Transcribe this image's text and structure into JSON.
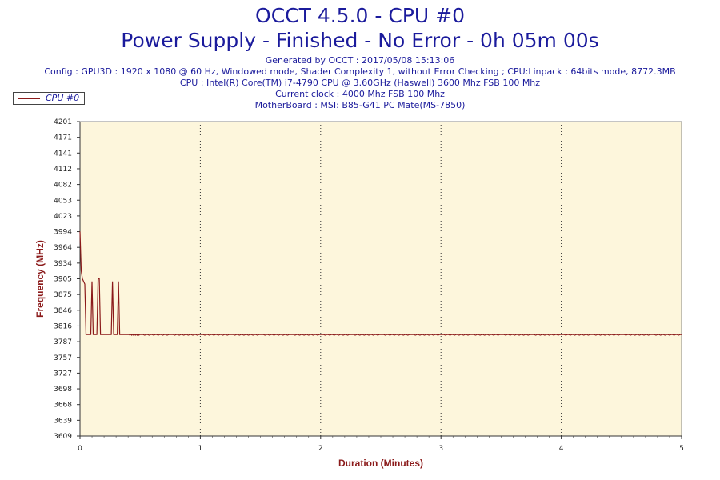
{
  "header": {
    "title_line1": "OCCT 4.5.0 - CPU #0",
    "title_line2": "Power Supply - Finished - No Error - 0h 05m 00s",
    "info_lines": [
      "Generated by OCCT : 2017/05/08 15:13:06",
      "Config : GPU3D : 1920 x 1080 @ 60 Hz, Windowed mode, Shader Complexity 1, without Error Checking ; CPU:Linpack : 64bits mode, 8772.3MB",
      "CPU : Intel(R) Core(TM) i7-4790 CPU @ 3.60GHz (Haswell) 3600 Mhz FSB 100 Mhz",
      "Current clock : 4000 Mhz FSB 100 Mhz",
      "MotherBoard : MSI: B85-G41 PC Mate(MS-7850)"
    ]
  },
  "colors": {
    "title": "#1b1b9c",
    "series": "#8b1a1a",
    "plot_bg": "#fdf6dc",
    "axis_title": "#8b1a1a"
  },
  "chart_data": {
    "type": "line",
    "xlabel": "Duration (Minutes)",
    "ylabel": "Frequency (MHz)",
    "xlim": [
      0,
      5
    ],
    "ylim": [
      3609,
      4201
    ],
    "x_ticks": [
      "0",
      "1",
      "2",
      "3",
      "4",
      "5"
    ],
    "y_ticks": [
      "4201",
      "4171",
      "4141",
      "4112",
      "4082",
      "4053",
      "4023",
      "3994",
      "3964",
      "3934",
      "3905",
      "3875",
      "3846",
      "3816",
      "3787",
      "3757",
      "3727",
      "3698",
      "3668",
      "3639",
      "3609"
    ],
    "grid": "vertical dotted at each minute",
    "legend_position": "top-left",
    "series": [
      {
        "name": "CPU #0",
        "x": [
          0.0,
          0.01,
          0.02,
          0.03,
          0.04,
          0.05,
          0.06,
          0.07,
          0.08,
          0.09,
          0.1,
          0.11,
          0.12,
          0.13,
          0.14,
          0.15,
          0.16,
          0.17,
          0.18,
          0.19,
          0.2,
          0.21,
          0.22,
          0.23,
          0.24,
          0.25,
          0.26,
          0.27,
          0.28,
          0.29,
          0.3,
          0.31,
          0.32,
          0.33,
          0.34,
          0.35,
          0.36,
          0.38,
          0.4,
          0.5,
          0.75,
          1.0,
          1.25,
          1.5,
          1.75,
          2.0,
          2.25,
          2.5,
          2.75,
          3.0,
          3.25,
          3.5,
          3.75,
          4.0,
          4.25,
          4.5,
          4.75,
          5.0
        ],
        "y": [
          3994,
          3920,
          3905,
          3900,
          3895,
          3800,
          3800,
          3800,
          3800,
          3800,
          3900,
          3800,
          3800,
          3800,
          3800,
          3905,
          3905,
          3800,
          3800,
          3800,
          3800,
          3800,
          3800,
          3800,
          3800,
          3800,
          3800,
          3900,
          3800,
          3800,
          3800,
          3800,
          3900,
          3800,
          3800,
          3800,
          3800,
          3800,
          3800,
          3800,
          3800,
          3800,
          3800,
          3800,
          3800,
          3800,
          3800,
          3800,
          3800,
          3800,
          3800,
          3800,
          3800,
          3800,
          3800,
          3800,
          3800,
          3800
        ]
      }
    ]
  }
}
